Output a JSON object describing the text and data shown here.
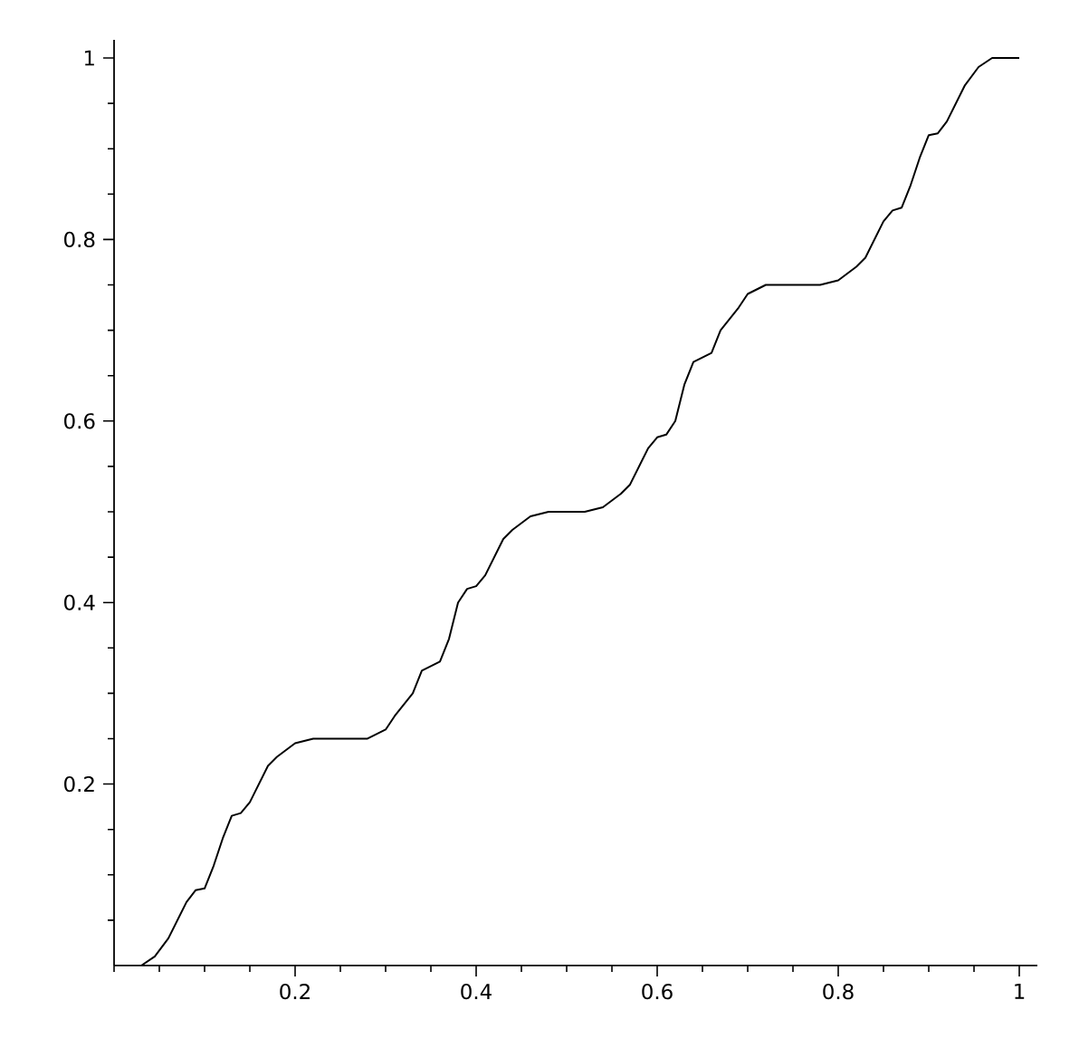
{
  "chart_data": {
    "type": "line",
    "color": "#000000",
    "marker": "none",
    "line_style": "solid",
    "x": [
      0,
      0.03,
      0.045,
      0.06,
      0.07,
      0.08,
      0.09,
      0.1,
      0.11,
      0.12,
      0.13,
      0.14,
      0.15,
      0.16,
      0.17,
      0.18,
      0.2,
      0.22,
      0.28,
      0.3,
      0.31,
      0.33,
      0.34,
      0.36,
      0.37,
      0.38,
      0.39,
      0.4,
      0.41,
      0.42,
      0.43,
      0.44,
      0.46,
      0.48,
      0.52,
      0.54,
      0.56,
      0.57,
      0.58,
      0.59,
      0.6,
      0.61,
      0.62,
      0.63,
      0.64,
      0.66,
      0.67,
      0.69,
      0.7,
      0.72,
      0.78,
      0.8,
      0.82,
      0.83,
      0.84,
      0.85,
      0.86,
      0.87,
      0.88,
      0.89,
      0.9,
      0.91,
      0.92,
      0.93,
      0.94,
      0.955,
      0.97,
      1
    ],
    "values": [
      0,
      0,
      0.01,
      0.03,
      0.05,
      0.07,
      0.083,
      0.085,
      0.11,
      0.14,
      0.165,
      0.168,
      0.18,
      0.2,
      0.22,
      0.23,
      0.245,
      0.25,
      0.25,
      0.26,
      0.275,
      0.3,
      0.325,
      0.335,
      0.36,
      0.4,
      0.415,
      0.418,
      0.43,
      0.45,
      0.47,
      0.48,
      0.495,
      0.5,
      0.5,
      0.505,
      0.52,
      0.53,
      0.55,
      0.57,
      0.582,
      0.585,
      0.6,
      0.64,
      0.665,
      0.675,
      0.7,
      0.725,
      0.74,
      0.75,
      0.75,
      0.755,
      0.77,
      0.78,
      0.8,
      0.82,
      0.832,
      0.835,
      0.86,
      0.89,
      0.915,
      0.917,
      0.93,
      0.95,
      0.97,
      0.99,
      1,
      1
    ],
    "xlim": [
      0,
      1.02
    ],
    "ylim": [
      0,
      1.02
    ],
    "xticks": [
      {
        "value": 0,
        "label": null
      },
      {
        "value": 0.05,
        "label": null
      },
      {
        "value": 0.1,
        "label": null
      },
      {
        "value": 0.15,
        "label": null
      },
      0.2,
      {
        "value": 0.25,
        "label": null
      },
      {
        "value": 0.3,
        "label": null
      },
      {
        "value": 0.35,
        "label": null
      },
      0.4,
      {
        "value": 0.45,
        "label": null
      },
      {
        "value": 0.5,
        "label": null
      },
      {
        "value": 0.55,
        "label": null
      },
      0.6,
      {
        "value": 0.65,
        "label": null
      },
      {
        "value": 0.7,
        "label": null
      },
      {
        "value": 0.75,
        "label": null
      },
      0.8,
      {
        "value": 0.85,
        "label": null
      },
      {
        "value": 0.9,
        "label": null
      },
      {
        "value": 0.95,
        "label": null
      },
      1
    ],
    "yticks": [
      {
        "value": 0.05,
        "label": null
      },
      {
        "value": 0.1,
        "label": null
      },
      {
        "value": 0.15,
        "label": null
      },
      0.2,
      {
        "value": 0.25,
        "label": null
      },
      {
        "value": 0.3,
        "label": null
      },
      {
        "value": 0.35,
        "label": null
      },
      0.4,
      {
        "value": 0.45,
        "label": null
      },
      {
        "value": 0.5,
        "label": null
      },
      {
        "value": 0.55,
        "label": null
      },
      0.6,
      {
        "value": 0.65,
        "label": null
      },
      {
        "value": 0.7,
        "label": null
      },
      {
        "value": 0.75,
        "label": null
      },
      0.8,
      {
        "value": 0.85,
        "label": null
      },
      {
        "value": 0.9,
        "label": null
      },
      {
        "value": 0.95,
        "label": null
      },
      1
    ]
  }
}
